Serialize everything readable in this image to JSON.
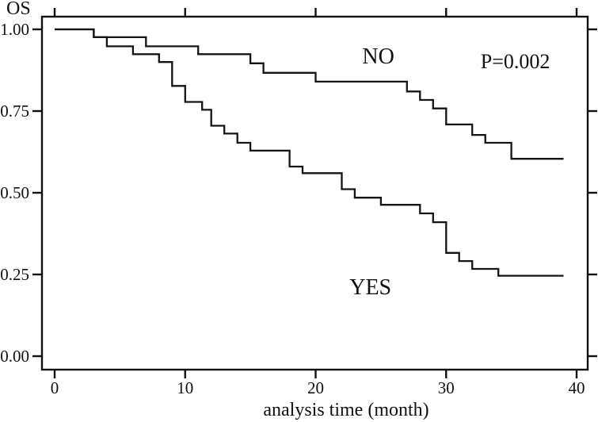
{
  "chart_data": {
    "type": "line",
    "variant": "kaplan-meier-step",
    "title": "",
    "ylabel": "OS",
    "xlabel": "analysis time (month)",
    "xlim": [
      0,
      40
    ],
    "ylim": [
      0.0,
      1.0
    ],
    "xticks": [
      "0",
      "10",
      "20",
      "30",
      "40"
    ],
    "yticks": [
      "0.00",
      "0.25",
      "0.50",
      "0.75",
      "1.00"
    ],
    "grid": false,
    "legend_position": "inline-annotations",
    "line_color": "#141414",
    "background_color": "#ffffff",
    "series": [
      {
        "name": "NO",
        "points": [
          [
            0,
            1.0
          ],
          [
            3,
            0.976
          ],
          [
            7,
            0.948
          ],
          [
            11,
            0.924
          ],
          [
            15,
            0.896
          ],
          [
            16,
            0.867
          ],
          [
            20,
            0.84
          ],
          [
            27,
            0.81
          ],
          [
            28,
            0.784
          ],
          [
            29,
            0.758
          ],
          [
            30,
            0.709
          ],
          [
            32,
            0.677
          ],
          [
            33,
            0.653
          ],
          [
            35,
            0.604
          ],
          [
            39,
            0.604
          ]
        ]
      },
      {
        "name": "YES",
        "points": [
          [
            0,
            1.0
          ],
          [
            3,
            0.976
          ],
          [
            4,
            0.948
          ],
          [
            6,
            0.924
          ],
          [
            8,
            0.9
          ],
          [
            9,
            0.827
          ],
          [
            10,
            0.778
          ],
          [
            11.3,
            0.754
          ],
          [
            12,
            0.705
          ],
          [
            13,
            0.681
          ],
          [
            14,
            0.653
          ],
          [
            15,
            0.629
          ],
          [
            18,
            0.58
          ],
          [
            19,
            0.56
          ],
          [
            22,
            0.511
          ],
          [
            23,
            0.485
          ],
          [
            25,
            0.463
          ],
          [
            28,
            0.437
          ],
          [
            29,
            0.41
          ],
          [
            30,
            0.316
          ],
          [
            31,
            0.291
          ],
          [
            32,
            0.267
          ],
          [
            34,
            0.246
          ],
          [
            39,
            0.246
          ]
        ]
      }
    ],
    "annotations": [
      {
        "id": "no-label",
        "text": "NO",
        "month": 24.8,
        "survival": 0.896
      },
      {
        "id": "yes-label",
        "text": "YES",
        "month": 24.2,
        "survival": 0.189
      },
      {
        "id": "p-value",
        "text": "P=0.002",
        "month": 35.3,
        "survival": 0.881
      }
    ]
  }
}
